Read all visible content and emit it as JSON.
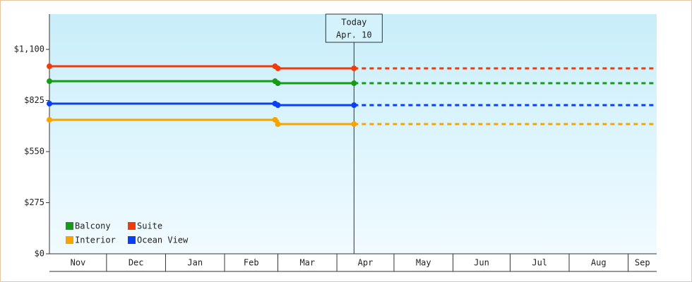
{
  "chart_data": {
    "type": "line",
    "categories": [
      "Nov",
      "Dec",
      "Jan",
      "Feb",
      "Mar",
      "Apr",
      "May",
      "Jun",
      "Jul",
      "Aug",
      "Sep"
    ],
    "x": [
      "Nov",
      "Mar"
    ],
    "series": [
      {
        "name": "Balcony",
        "color": "#179a17",
        "values": [
          929,
          918
        ]
      },
      {
        "name": "Suite",
        "color": "#f03c0c",
        "values": [
          1009,
          998
        ]
      },
      {
        "name": "Interior",
        "color": "#f7a400",
        "values": [
          721,
          698
        ]
      },
      {
        "name": "Ocean View",
        "color": "#0b3ff5",
        "values": [
          808,
          800
        ]
      }
    ],
    "today": {
      "label": "Today",
      "date": "Apr. 10"
    },
    "ylim": [
      0,
      1290
    ],
    "yticks": [
      {
        "value": 0,
        "label": "$0"
      },
      {
        "value": 275,
        "label": "$275"
      },
      {
        "value": 550,
        "label": "$550"
      },
      {
        "value": 825,
        "label": "$825"
      },
      {
        "value": 1100,
        "label": "$1,100"
      }
    ],
    "legend": "lower left"
  }
}
